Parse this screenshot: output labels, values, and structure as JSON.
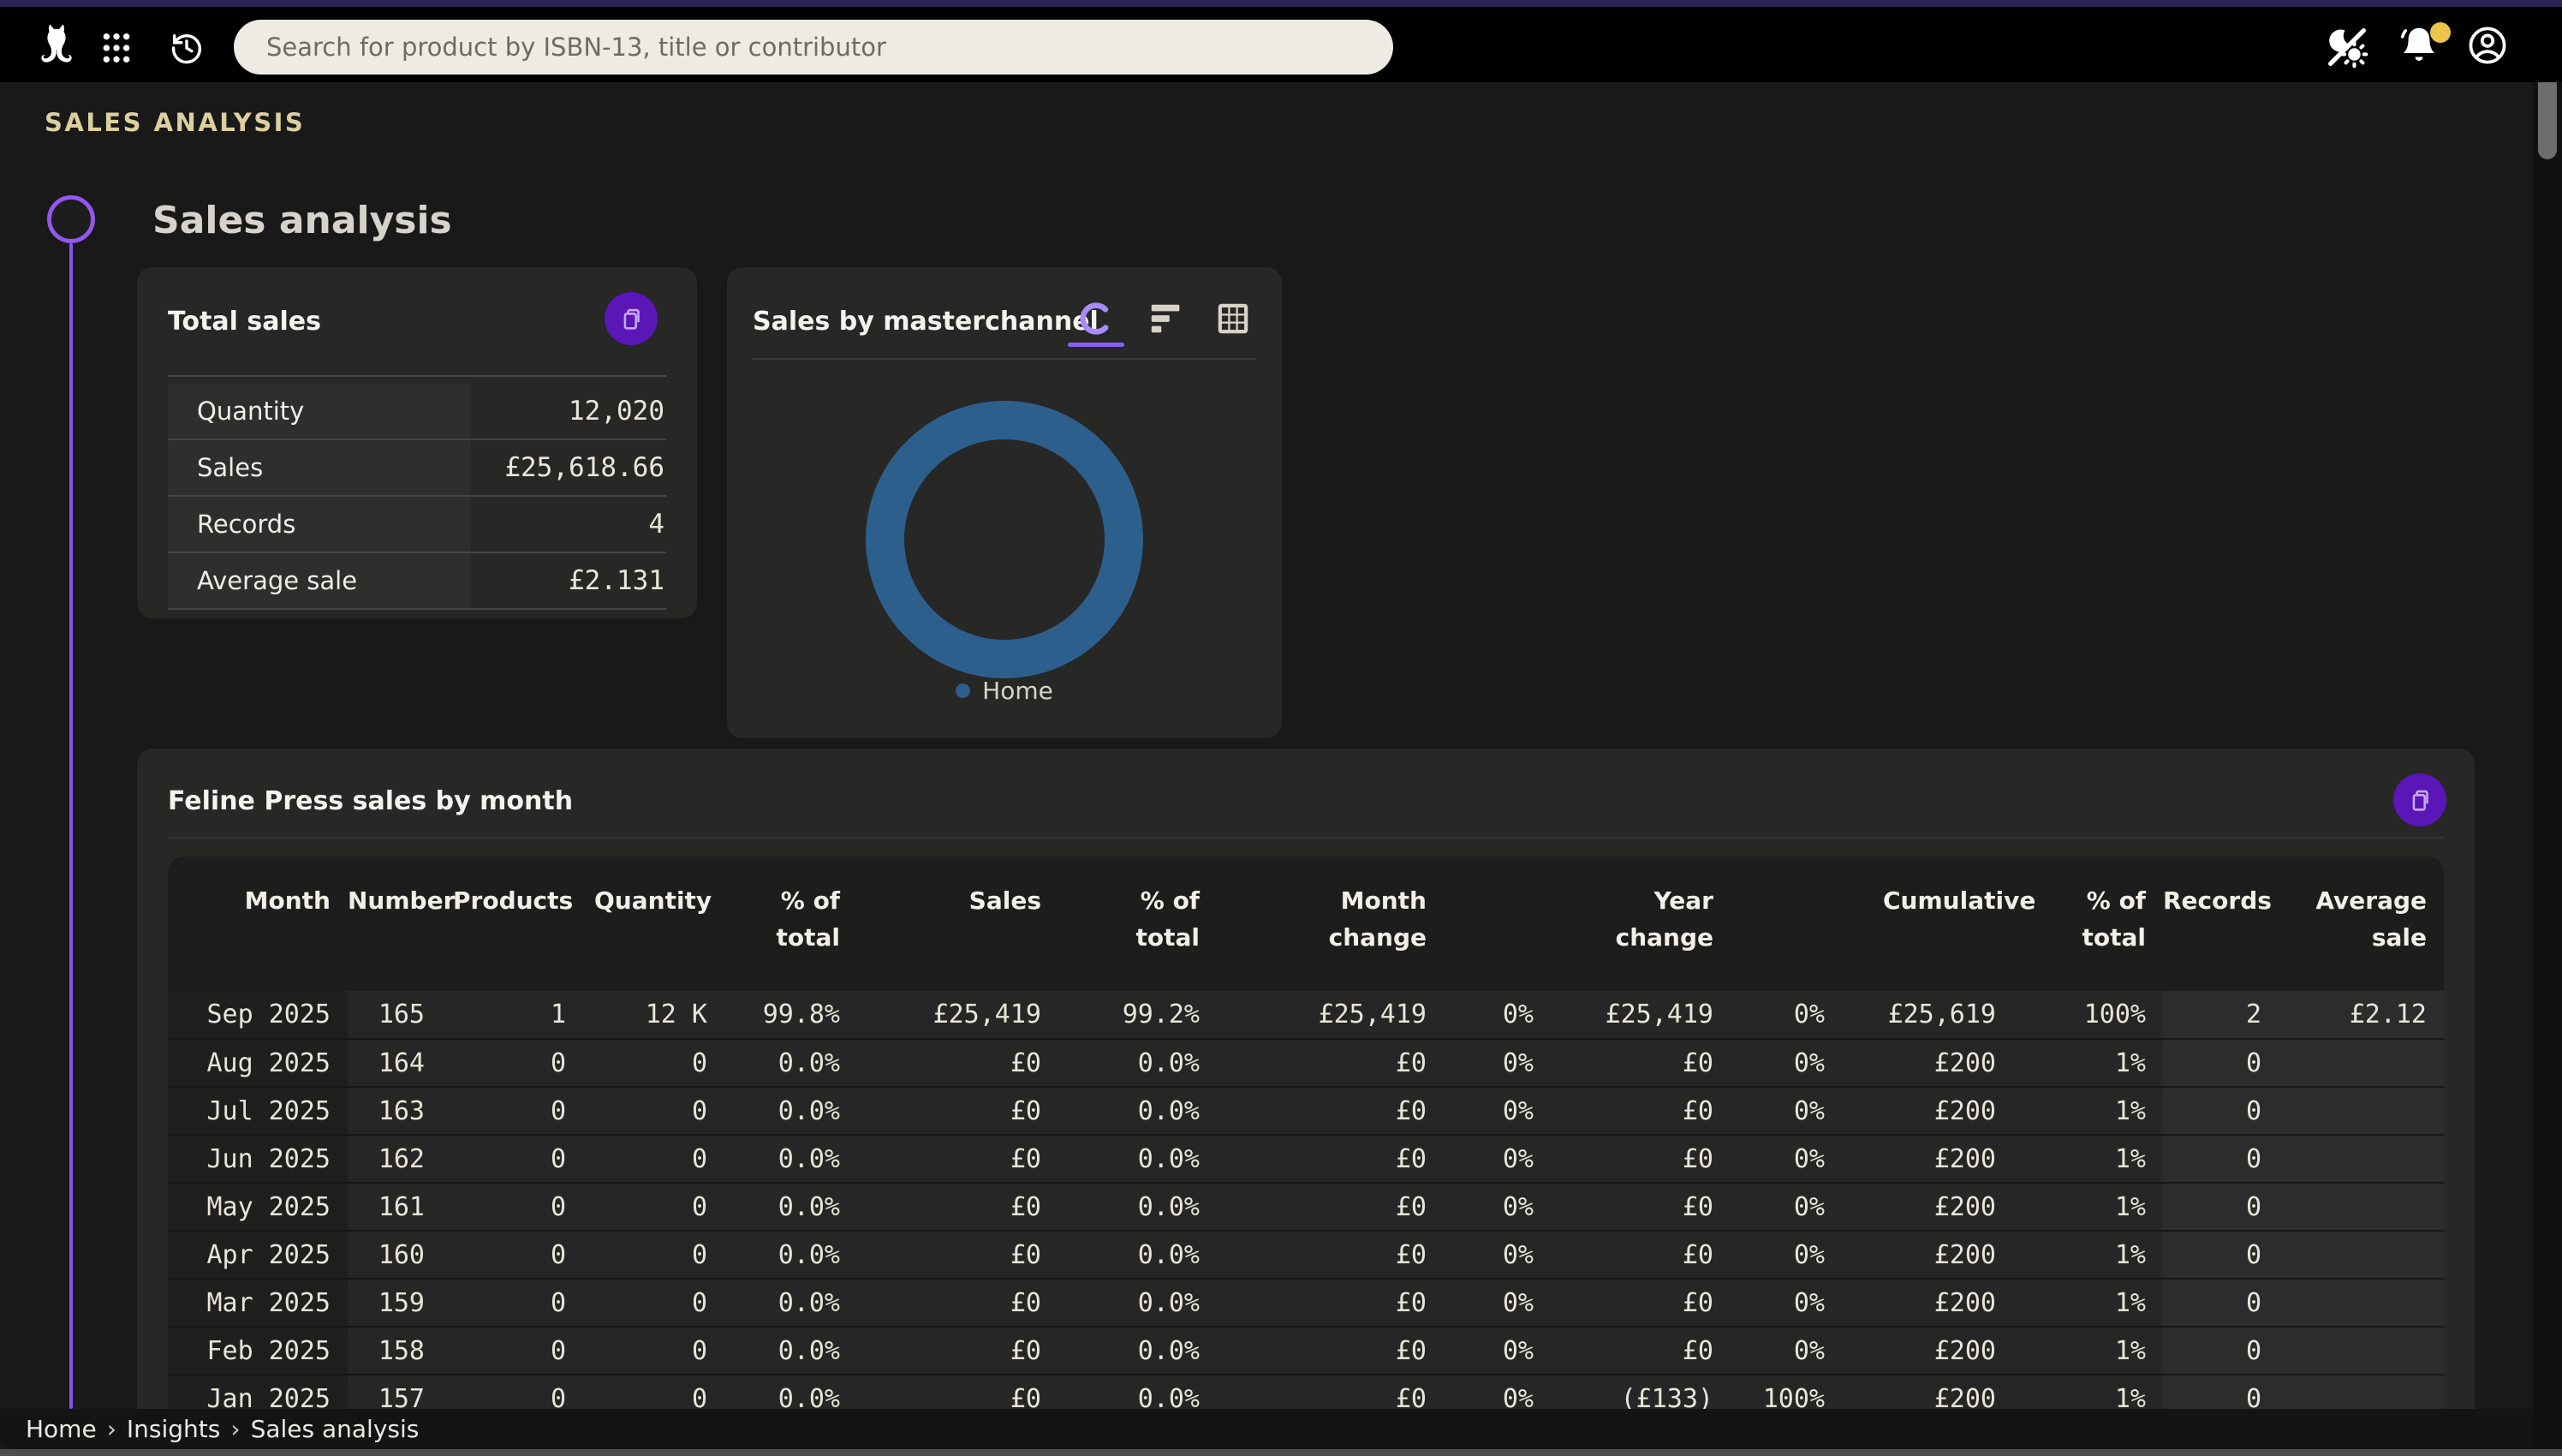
{
  "topbar": {
    "search_placeholder": "Search for product by ISBN-13, title or contributor"
  },
  "eyebrow": "SALES ANALYSIS",
  "page_title": "Sales analysis",
  "total_sales_card": {
    "title": "Total sales",
    "rows": [
      {
        "label": "Quantity",
        "value": "12,020"
      },
      {
        "label": "Sales",
        "value": "£25,618.66"
      },
      {
        "label": "Records",
        "value": "4"
      },
      {
        "label": "Average sale",
        "value": "£2.131"
      }
    ]
  },
  "masterchannel_card": {
    "title": "Sales by masterchannel",
    "legend": [
      {
        "label": "Home",
        "color": "#2d5f8c"
      }
    ],
    "chart_data": {
      "type": "pie",
      "donut": true,
      "categories": [
        "Home"
      ],
      "values": [
        100
      ],
      "unit": "%",
      "colors": [
        "#2d5f8c"
      ],
      "legend_position": "bottom",
      "title": "Sales by masterchannel"
    }
  },
  "monthly_card": {
    "title": "Feline Press sales by month",
    "columns": [
      "Month",
      "Number",
      "Products",
      "Quantity",
      "% of total",
      "Sales",
      "% of total",
      "Month change",
      "",
      "Year change",
      "",
      "Cumulative",
      "% of total",
      "Records",
      "Average sale"
    ],
    "rows": [
      [
        "Sep 2025",
        "165",
        "1",
        "12 K",
        "99.8%",
        "£25,419",
        "99.2%",
        "£25,419",
        "0%",
        "£25,419",
        "0%",
        "£25,619",
        "100%",
        "2",
        "£2.12"
      ],
      [
        "Aug 2025",
        "164",
        "0",
        "0",
        "0.0%",
        "£0",
        "0.0%",
        "£0",
        "0%",
        "£0",
        "0%",
        "£200",
        "1%",
        "0",
        ""
      ],
      [
        "Jul 2025",
        "163",
        "0",
        "0",
        "0.0%",
        "£0",
        "0.0%",
        "£0",
        "0%",
        "£0",
        "0%",
        "£200",
        "1%",
        "0",
        ""
      ],
      [
        "Jun 2025",
        "162",
        "0",
        "0",
        "0.0%",
        "£0",
        "0.0%",
        "£0",
        "0%",
        "£0",
        "0%",
        "£200",
        "1%",
        "0",
        ""
      ],
      [
        "May 2025",
        "161",
        "0",
        "0",
        "0.0%",
        "£0",
        "0.0%",
        "£0",
        "0%",
        "£0",
        "0%",
        "£200",
        "1%",
        "0",
        ""
      ],
      [
        "Apr 2025",
        "160",
        "0",
        "0",
        "0.0%",
        "£0",
        "0.0%",
        "£0",
        "0%",
        "£0",
        "0%",
        "£200",
        "1%",
        "0",
        ""
      ],
      [
        "Mar 2025",
        "159",
        "0",
        "0",
        "0.0%",
        "£0",
        "0.0%",
        "£0",
        "0%",
        "£0",
        "0%",
        "£200",
        "1%",
        "0",
        ""
      ],
      [
        "Feb 2025",
        "158",
        "0",
        "0",
        "0.0%",
        "£0",
        "0.0%",
        "£0",
        "0%",
        "£0",
        "0%",
        "£200",
        "1%",
        "0",
        ""
      ],
      [
        "Jan 2025",
        "157",
        "0",
        "0",
        "0.0%",
        "£0",
        "0.0%",
        "£0",
        "0%",
        "(£133)",
        "100%",
        "£200",
        "1%",
        "0",
        ""
      ]
    ]
  },
  "breadcrumb": {
    "separator": "›",
    "items": [
      "Home",
      "Insights",
      "Sales analysis"
    ]
  },
  "colors": {
    "accent_purple": "#5b16b8",
    "timeline_purple": "#8a52ec",
    "eyebrow_gold": "#ddcf9e",
    "donut_blue": "#2d5f8c",
    "badge_yellow": "#ecc64a"
  }
}
